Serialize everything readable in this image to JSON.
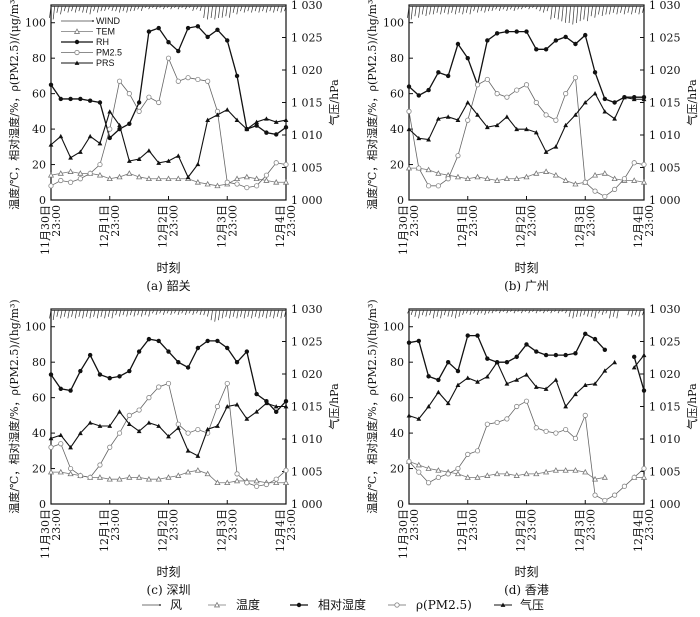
{
  "chart_data": [
    {
      "type": "line",
      "panel_label": "(a) 韶关",
      "xlabel": "时刻",
      "ylabel_left": "温度/℃，相对湿度/%，ρ(PM2.5)/(μg/m³)",
      "ylabel_right": "气压/hPa",
      "x_ticks": [
        [
          "11月30日",
          "23:00"
        ],
        [
          "12月1日",
          "23:00"
        ],
        [
          "12月2日",
          "23:00"
        ],
        [
          "12月3日",
          "23:00"
        ],
        [
          "12月4日",
          "23:00"
        ]
      ],
      "x_hours": [
        0,
        4,
        8,
        12,
        16,
        20,
        24,
        28,
        32,
        36,
        40,
        44,
        48,
        52,
        56,
        60,
        64,
        68,
        72,
        76,
        80,
        84,
        88,
        92,
        96
      ],
      "ylim_left": [
        0,
        110
      ],
      "ylim_right": [
        1000,
        1030
      ],
      "left_ticks": [
        "0",
        "20",
        "40",
        "60",
        "80",
        "100"
      ],
      "right_ticks": [
        "1 000",
        "1 005",
        "1 010",
        "1 015",
        "1 020",
        "1 025",
        "1 030"
      ],
      "legend": {
        "placement": "top-left",
        "entries": [
          "WIND",
          "TEM",
          "RH",
          "PM2.5",
          "PRS"
        ]
      },
      "series": [
        {
          "name": "WIND",
          "values": [
            104,
            107,
            108,
            108,
            107,
            108,
            109,
            108,
            108,
            109,
            110,
            110,
            110,
            110,
            110,
            109,
            104,
            104,
            105,
            107,
            108,
            108,
            108,
            108,
            108
          ]
        },
        {
          "name": "TEM",
          "values": [
            14,
            15,
            16,
            15,
            15,
            14,
            12,
            13,
            15,
            13,
            12,
            12,
            12,
            12,
            12,
            10,
            9,
            8,
            9,
            12,
            13,
            12,
            11,
            10,
            10
          ]
        },
        {
          "name": "RH",
          "values": [
            65,
            57,
            57,
            57,
            56,
            55,
            35,
            40,
            43,
            55,
            95,
            97,
            89,
            84,
            97,
            98,
            92,
            96,
            90,
            70,
            40,
            42,
            38,
            37,
            41
          ]
        },
        {
          "name": "PM2.5",
          "values": [
            8,
            11,
            10,
            12,
            15,
            20,
            40,
            67,
            60,
            50,
            58,
            55,
            80,
            67,
            69,
            68,
            67,
            50,
            10,
            9,
            7,
            8,
            14,
            21,
            20
          ]
        },
        {
          "name": "PRS",
          "axis": "right",
          "values": [
            1008.5,
            1009.8,
            1006.5,
            1007.4,
            1009.8,
            1008.7,
            1013.6,
            1011.5,
            1006.0,
            1006.3,
            1007.6,
            1005.7,
            1006.0,
            1006.8,
            1003.5,
            1005.5,
            1012.3,
            1013.1,
            1013.9,
            1012.3,
            1010.9,
            1012.0,
            1012.5,
            1012.0,
            1012.3
          ]
        }
      ]
    },
    {
      "type": "line",
      "panel_label": "(b) 广州",
      "xlabel": "时刻",
      "ylabel_left": "温度/℃，相对湿度/%，ρ(PM2.5)/(hg/m³)",
      "ylabel_right": "气压/hPa",
      "x_ticks": [
        [
          "11月30日",
          "23:00"
        ],
        [
          "12月1日",
          "23:00"
        ],
        [
          "12月2日",
          "23:00"
        ],
        [
          "12月3日",
          "23:00"
        ],
        [
          "12月4日",
          "23:00"
        ]
      ],
      "x_hours": [
        0,
        4,
        8,
        12,
        16,
        20,
        24,
        28,
        32,
        36,
        40,
        44,
        48,
        52,
        56,
        60,
        64,
        68,
        72,
        76,
        80,
        84,
        88,
        92,
        96
      ],
      "ylim_left": [
        0,
        110
      ],
      "ylim_right": [
        1000,
        1030
      ],
      "left_ticks": [
        "0",
        "20",
        "40",
        "60",
        "80",
        "100"
      ],
      "right_ticks": [
        "1 000",
        "1 005",
        "1 010",
        "1 015",
        "1 020",
        "1 025",
        "1 030"
      ],
      "series": [
        {
          "name": "WIND",
          "values": [
            104,
            105,
            106,
            107,
            107,
            107,
            107,
            108,
            108,
            109,
            109,
            109,
            110,
            110,
            108,
            104,
            102,
            101,
            103,
            105,
            106,
            107,
            107,
            107,
            107
          ]
        },
        {
          "name": "TEM",
          "values": [
            18,
            18,
            17,
            15,
            14,
            13,
            12,
            13,
            12,
            11,
            12,
            12,
            13,
            15,
            16,
            14,
            11,
            9,
            10,
            14,
            15,
            12,
            11,
            11,
            10
          ]
        },
        {
          "name": "RH",
          "values": [
            64,
            59,
            62,
            72,
            70,
            88,
            80,
            65,
            90,
            94,
            95,
            95,
            95,
            85,
            85,
            90,
            92,
            88,
            93,
            72,
            57,
            55,
            58,
            58,
            58
          ]
        },
        {
          "name": "PM2.5",
          "values": [
            50,
            18,
            8,
            8,
            12,
            25,
            45,
            65,
            68,
            60,
            58,
            62,
            65,
            55,
            48,
            45,
            60,
            69,
            10,
            5,
            2,
            6,
            12,
            21,
            20
          ]
        },
        {
          "name": "PRS",
          "axis": "right",
          "values": [
            1010.9,
            1009.5,
            1009.3,
            1012.5,
            1012.8,
            1012.3,
            1015.0,
            1013.1,
            1011.2,
            1011.5,
            1012.8,
            1010.9,
            1010.9,
            1010.4,
            1007.4,
            1008.2,
            1011.5,
            1013.1,
            1015.0,
            1016.4,
            1013.6,
            1012.5,
            1015.8,
            1015.5,
            1015.5
          ]
        }
      ]
    },
    {
      "type": "line",
      "panel_label": "(c) 深圳",
      "xlabel": "时刻",
      "ylabel_left": "温度/℃，相对湿度/%，ρ(PM2.5)/(hg/m³)",
      "ylabel_right": "气压/hPa",
      "x_ticks": [
        [
          "11月30日",
          "23:00"
        ],
        [
          "12月1日",
          "23:00"
        ],
        [
          "12月2日",
          "23:00"
        ],
        [
          "12月3日",
          "23:00"
        ],
        [
          "12月4日",
          "23:00"
        ]
      ],
      "x_hours": [
        0,
        4,
        8,
        12,
        16,
        20,
        24,
        28,
        32,
        36,
        40,
        44,
        48,
        52,
        56,
        60,
        64,
        68,
        72,
        76,
        80,
        84,
        88,
        92,
        96
      ],
      "ylim_left": [
        0,
        110
      ],
      "ylim_right": [
        1000,
        1030
      ],
      "left_ticks": [
        "0",
        "20",
        "40",
        "60",
        "80",
        "100"
      ],
      "right_ticks": [
        "1 000",
        "1 005",
        "1 010",
        "1 015",
        "1 020",
        "1 025",
        "1 030"
      ],
      "series": [
        {
          "name": "WIND",
          "values": [
            106,
            107,
            107,
            107,
            107,
            107,
            107,
            108,
            108,
            108,
            108,
            109,
            109,
            109,
            109,
            109,
            108,
            105,
            107,
            107,
            107,
            107,
            107,
            107,
            107
          ]
        },
        {
          "name": "TEM",
          "values": [
            18,
            18,
            17,
            16,
            15,
            15,
            14,
            14,
            15,
            15,
            14,
            14,
            15,
            16,
            18,
            19,
            17,
            12,
            12,
            13,
            13,
            13,
            12,
            12,
            12
          ]
        },
        {
          "name": "RH",
          "values": [
            73,
            65,
            64,
            75,
            84,
            73,
            71,
            72,
            75,
            86,
            93,
            92,
            86,
            80,
            77,
            88,
            92,
            92,
            88,
            80,
            86,
            62,
            58,
            52,
            58
          ]
        },
        {
          "name": "PM2.5",
          "values": [
            32,
            34,
            20,
            16,
            15,
            22,
            32,
            40,
            50,
            53,
            60,
            66,
            68,
            45,
            40,
            42,
            40,
            55,
            68,
            17,
            12,
            10,
            11,
            14,
            19
          ]
        },
        {
          "name": "PRS",
          "axis": "right",
          "values": [
            1010.1,
            1010.6,
            1008.7,
            1010.9,
            1012.5,
            1012.0,
            1012.0,
            1014.2,
            1012.3,
            1011.2,
            1012.5,
            1012.0,
            1010.4,
            1011.7,
            1008.2,
            1007.4,
            1011.5,
            1012.0,
            1015.0,
            1015.3,
            1013.1,
            1014.2,
            1015.5,
            1015.0,
            1015.0
          ]
        }
      ]
    },
    {
      "type": "line",
      "panel_label": "(d) 香港",
      "xlabel": "时刻",
      "ylabel_left": "温度/℃，相对湿度/%，ρ(PM2.5)/(hg/m³)",
      "ylabel_right": "气压/hPa",
      "x_ticks": [
        [
          "11月30日",
          "23:00"
        ],
        [
          "12月1日",
          "23:00"
        ],
        [
          "12月2日",
          "23:00"
        ],
        [
          "12月3日",
          "23:00"
        ],
        [
          "12月4日",
          "23:00"
        ]
      ],
      "x_hours": [
        0,
        4,
        8,
        12,
        16,
        20,
        24,
        28,
        32,
        36,
        40,
        44,
        48,
        52,
        56,
        60,
        64,
        68,
        72,
        76,
        80,
        84,
        88,
        92,
        96
      ],
      "ylim_left": [
        0,
        110
      ],
      "ylim_right": [
        1000,
        1030
      ],
      "left_ticks": [
        "0",
        "20",
        "40",
        "60",
        "80",
        "100"
      ],
      "right_ticks": [
        "1 000",
        "1 005",
        "1 010",
        "1 015",
        "1 020",
        "1 025",
        "1 030"
      ],
      "series": [
        {
          "name": "WIND",
          "values": [
            109,
            107,
            108,
            107,
            108,
            107,
            109,
            109,
            109,
            110,
            110,
            110,
            110,
            110,
            110,
            110,
            110,
            107,
            108,
            107,
            109,
            107,
            null,
            108,
            108
          ]
        },
        {
          "name": "TEM",
          "values": [
            24,
            22,
            20,
            19,
            18,
            17,
            15,
            15,
            16,
            17,
            17,
            16,
            17,
            17,
            18,
            19,
            19,
            19,
            18,
            14,
            15,
            null,
            null,
            15,
            15
          ]
        },
        {
          "name": "RH",
          "values": [
            91,
            92,
            72,
            70,
            80,
            75,
            95,
            95,
            82,
            80,
            80,
            83,
            90,
            86,
            84,
            84,
            84,
            85,
            96,
            93,
            87,
            null,
            null,
            83,
            64
          ]
        },
        {
          "name": "PM2.5",
          "values": [
            24,
            18,
            12,
            15,
            17,
            20,
            28,
            30,
            45,
            46,
            48,
            55,
            58,
            43,
            41,
            40,
            42,
            37,
            50,
            5,
            2,
            5,
            10,
            15,
            20
          ]
        },
        {
          "name": "PRS",
          "axis": "right",
          "values": [
            1013.6,
            1013.1,
            1015.0,
            1017.2,
            1015.5,
            1018.3,
            1019.4,
            1018.8,
            1019.6,
            1021.8,
            1018.5,
            1019.1,
            1019.9,
            1018.0,
            1017.7,
            1019.1,
            1015.0,
            1016.9,
            1018.3,
            1018.5,
            1020.5,
            1021.8,
            null,
            1021.0,
            1022.9
          ]
        }
      ]
    }
  ],
  "bottom_legend": [
    "风",
    "温度",
    "相对湿度",
    "ρ(PM2.5)",
    "气压"
  ],
  "colors": {
    "lines": "#111111",
    "pm_marker": "#888888",
    "tem_marker": "#777777"
  }
}
